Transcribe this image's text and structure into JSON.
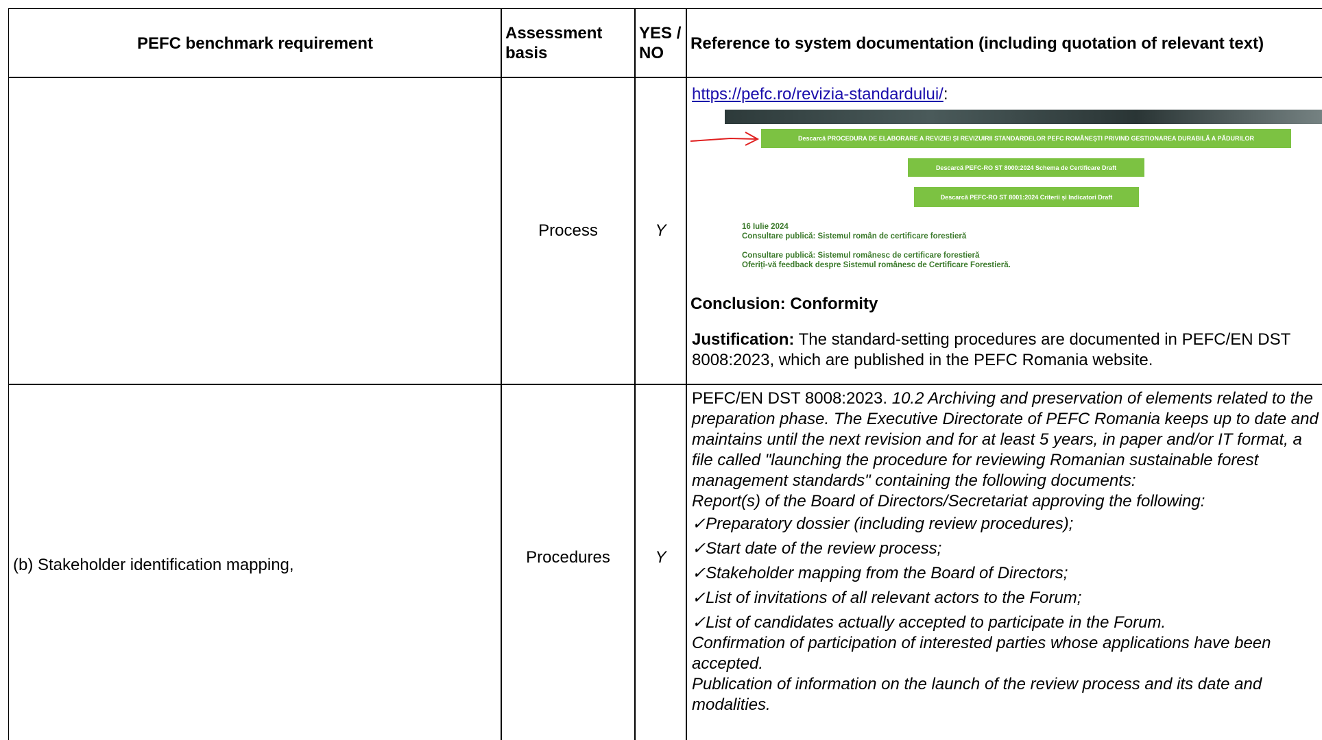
{
  "table": {
    "header": [
      "PEFC benchmark requirement",
      "Assessment basis",
      "YES / NO",
      "Reference to system documentation (including quotation of relevant text)"
    ],
    "rows": [
      {
        "assessment_basis": "Process",
        "yes_no": "Y",
        "reference": {
          "link": "https://pefc.ro/revizia-standardului/",
          "link_suffix": ":",
          "screenshot": {
            "buttons": [
              "Descarcă PROCEDURA DE ELABORARE A REVIZIEI ȘI REVIZUIRII STANDARDELOR PEFC ROMÂNEȘTI PRIVIND GESTIONAREA DURABILĂ A PĂDURILOR",
              "Descarcă PEFC-RO ST 8000:2024 Schema de Certificare Draft",
              "Descarcă PEFC-RO ST 8001:2024 Criterii și Indicatori Draft"
            ],
            "news": [
              "16 Iulie 2024",
              "Consultare publică: Sistemul român de certificare forestieră",
              "Consultare publică: Sistemul românesc de certificare forestieră",
              "Oferiți-vă feedback despre Sistemul românesc de Certificare Forestieră."
            ]
          },
          "conclusion": "Conclusion: Conformity",
          "justification_label": "Justification:",
          "justification": "The standard-setting procedures are documented in PEFC/EN DST 8008:2023, which are published in the PEFC Romania website."
        }
      },
      {
        "requirement": "(b) Stakeholder identification mapping,",
        "assessment_basis": "Procedures",
        "yes_no": "Y",
        "reference": {
          "intro": "PEFC/EN DST 8008:2023.",
          "quote": "10.2 Archiving and preservation of elements related to the preparation phase. The Executive Directorate of PEFC Romania keeps up to date and maintains until the next revision and for at least 5 years, in paper and/or IT format, a file called \"launching the procedure for reviewing Romanian sustainable forest management standards\" containing the following documents:",
          "report": "Report(s) of the Board of Directors/Secretariat approving the following:",
          "checklist": [
            "✓Preparatory dossier (including review procedures);",
            "✓Start date of the review process;",
            "✓Stakeholder mapping from the Board of Directors;",
            "✓List of invitations of all relevant actors to the Forum;",
            "✓List of candidates actually accepted to participate in the Forum."
          ],
          "after": [
            "Confirmation of participation of interested parties whose applications have been accepted.",
            "Publication of information on the launch of the review process and its date and modalities."
          ]
        }
      }
    ]
  }
}
